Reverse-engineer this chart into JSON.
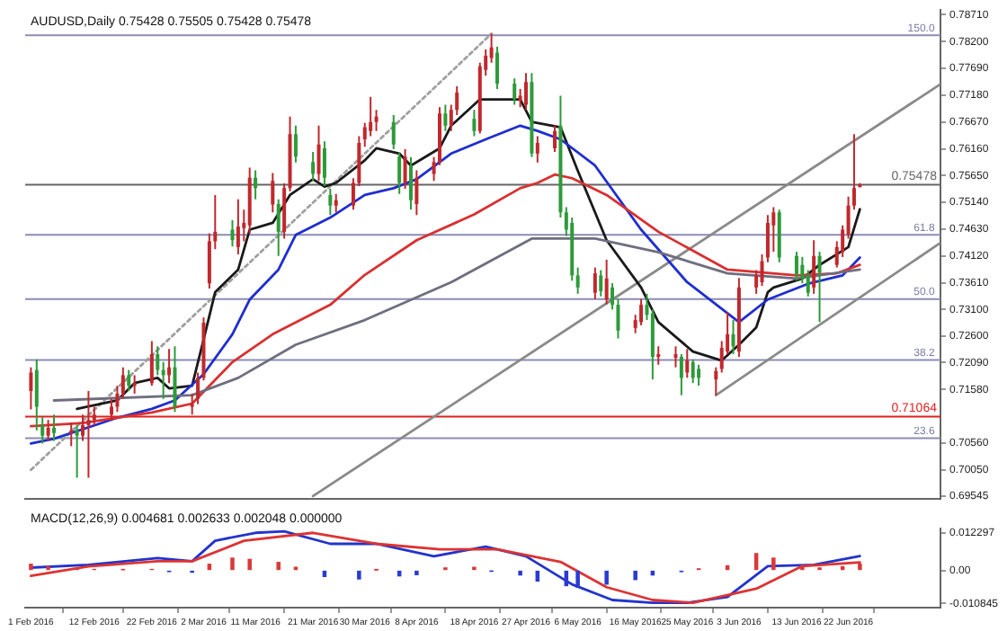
{
  "chart_data": [
    {
      "type": "candlestick",
      "title": "AUDUSD,Daily 0.75428 0.75505 0.75428 0.75478",
      "tick_labels": "y",
      "xlim": [
        "2016-01-31",
        "2016-07-08"
      ],
      "ylim": [
        0.695,
        0.788
      ],
      "yticks": [
        {
          "value": 0.7871,
          "label": "0.78710"
        },
        {
          "value": 0.782,
          "label": "0.78200"
        },
        {
          "value": 0.7769,
          "label": "0.77690"
        },
        {
          "value": 0.7718,
          "label": "0.77180"
        },
        {
          "value": 0.7667,
          "label": "0.76670"
        },
        {
          "value": 0.7616,
          "label": "0.76160"
        },
        {
          "value": 0.7565,
          "label": "0.75650"
        },
        {
          "value": 0.7514,
          "label": "0.75140"
        },
        {
          "value": 0.7463,
          "label": "0.74630"
        },
        {
          "value": 0.7412,
          "label": "0.74120"
        },
        {
          "value": 0.7361,
          "label": "0.73610"
        },
        {
          "value": 0.731,
          "label": "0.73100"
        },
        {
          "value": 0.726,
          "label": "0.72600"
        },
        {
          "value": 0.7209,
          "label": "0.72090"
        },
        {
          "value": 0.7158,
          "label": "0.71580"
        },
        {
          "value": 0.7056,
          "label": "0.70560"
        },
        {
          "value": 0.7005,
          "label": "0.70050"
        },
        {
          "value": 0.69545,
          "label": "0.69545"
        }
      ],
      "ref_lines": [
        {
          "axis": "y",
          "value": 0.7832,
          "color": "#8c8cb4"
        },
        {
          "axis": "y",
          "value": 0.75478,
          "label": "0.75478",
          "color": "#666666"
        },
        {
          "axis": "y",
          "value": 0.7452,
          "color": "#8c8cb4"
        },
        {
          "axis": "y",
          "value": 0.733,
          "color": "#8c8cb4"
        },
        {
          "axis": "y",
          "value": 0.7214,
          "color": "#8c8cb4"
        },
        {
          "axis": "y",
          "value": 0.71064,
          "label": "0.71064",
          "color": "#e02020"
        },
        {
          "axis": "y",
          "value": 0.7065,
          "color": "#8c8cb4"
        }
      ],
      "annotations": [
        {
          "text": "150.0",
          "x": "2016-07-07",
          "y": 0.7832
        },
        {
          "text": "61.8",
          "x": "2016-07-07",
          "y": 0.7452
        },
        {
          "text": "50.0",
          "x": "2016-07-07",
          "y": 0.733
        },
        {
          "text": "38.2",
          "x": "2016-07-07",
          "y": 0.7214
        },
        {
          "text": "23.6",
          "x": "2016-07-07",
          "y": 0.7065
        }
      ],
      "series": [
        {
          "type": "line",
          "color": "#6e6e80",
          "x": [
            "2016-02-05",
            "2016-02-29",
            "2016-03-08",
            "2016-03-18",
            "2016-03-30",
            "2016-04-14",
            "2016-04-28",
            "2016-05-09",
            "2016-05-20",
            "2016-06-01",
            "2016-06-13",
            "2016-06-24"
          ],
          "values": [
            0.7137,
            0.7147,
            0.718,
            0.7243,
            0.729,
            0.7362,
            0.7445,
            0.7445,
            0.7419,
            0.7379,
            0.7369,
            0.7386
          ]
        },
        {
          "type": "line",
          "color": "#d93030",
          "x": [
            "2016-02-01",
            "2016-02-10",
            "2016-02-22",
            "2016-02-29",
            "2016-03-07",
            "2016-03-14",
            "2016-03-24",
            "2016-03-30",
            "2016-04-08",
            "2016-04-18",
            "2016-04-26",
            "2016-04-29",
            "2016-05-02",
            "2016-05-05",
            "2016-05-11",
            "2016-05-20",
            "2016-06-01",
            "2016-06-13",
            "2016-06-20",
            "2016-06-24"
          ],
          "values": [
            0.7088,
            0.7094,
            0.7114,
            0.7131,
            0.721,
            0.7263,
            0.7319,
            0.7376,
            0.7442,
            0.7491,
            0.7541,
            0.7551,
            0.7567,
            0.756,
            0.7528,
            0.7458,
            0.7386,
            0.7375,
            0.7379,
            0.7395
          ]
        },
        {
          "type": "line",
          "color": "#1f2ed0",
          "x": [
            "2016-02-01",
            "2016-02-05",
            "2016-02-16",
            "2016-02-22",
            "2016-02-26",
            "2016-03-02",
            "2016-03-07",
            "2016-03-10",
            "2016-03-15",
            "2016-03-18",
            "2016-03-24",
            "2016-03-30",
            "2016-04-04",
            "2016-04-08",
            "2016-04-14",
            "2016-04-20",
            "2016-04-26",
            "2016-04-29",
            "2016-05-03",
            "2016-05-09",
            "2016-05-17",
            "2016-05-25",
            "2016-06-03",
            "2016-06-08",
            "2016-06-15",
            "2016-06-21",
            "2016-06-24"
          ],
          "values": [
            0.7055,
            0.7064,
            0.7104,
            0.7121,
            0.7137,
            0.7187,
            0.7263,
            0.7329,
            0.7386,
            0.7452,
            0.7485,
            0.7528,
            0.7541,
            0.7558,
            0.7607,
            0.7634,
            0.766,
            0.765,
            0.7634,
            0.7584,
            0.7462,
            0.7362,
            0.7286,
            0.7329,
            0.7359,
            0.7375,
            0.7409
          ]
        },
        {
          "type": "line",
          "color": "#1a1a1a",
          "x": [
            "2016-02-09",
            "2016-02-16",
            "2016-02-19",
            "2016-02-23",
            "2016-02-25",
            "2016-02-29",
            "2016-03-02",
            "2016-03-04",
            "2016-03-08",
            "2016-03-10",
            "2016-03-14",
            "2016-03-17",
            "2016-03-21",
            "2016-03-23",
            "2016-03-25",
            "2016-03-30",
            "2016-04-01",
            "2016-04-05",
            "2016-04-07",
            "2016-04-12",
            "2016-04-14",
            "2016-04-19",
            "2016-04-22",
            "2016-04-26",
            "2016-04-28",
            "2016-05-03",
            "2016-05-06",
            "2016-05-11",
            "2016-05-17",
            "2016-05-20",
            "2016-05-26",
            "2016-05-31",
            "2016-06-03",
            "2016-06-06",
            "2016-06-08",
            "2016-06-09",
            "2016-06-14",
            "2016-06-17",
            "2016-06-22",
            "2016-06-24"
          ],
          "values": [
            0.7121,
            0.7137,
            0.717,
            0.718,
            0.716,
            0.7165,
            0.7253,
            0.7343,
            0.7386,
            0.7462,
            0.7475,
            0.7528,
            0.7558,
            0.7544,
            0.7551,
            0.7594,
            0.7617,
            0.7607,
            0.7584,
            0.7617,
            0.766,
            0.771,
            0.771,
            0.771,
            0.7667,
            0.7657,
            0.7574,
            0.7442,
            0.7352,
            0.7286,
            0.723,
            0.7213,
            0.7243,
            0.7276,
            0.7343,
            0.7352,
            0.7369,
            0.7395,
            0.7429,
            0.7501
          ]
        },
        {
          "type": "line",
          "color": "#a0a0a0",
          "line_style": "dotted",
          "x": [
            "2016-02-01",
            "2016-04-21"
          ],
          "values": [
            0.7005,
            0.7835
          ]
        },
        {
          "type": "line",
          "color": "#8a8a8a",
          "x": [
            "2016-03-21",
            "2016-07-08"
          ],
          "values": [
            0.6955,
            0.7739
          ]
        },
        {
          "type": "line",
          "color": "#8a8a8a",
          "x": [
            "2016-05-30",
            "2016-07-08"
          ],
          "values": [
            0.7147,
            0.7437
          ]
        },
        {
          "color": "#c0282d",
          "x": [
            "2016-02-01",
            "2016-02-04",
            "2016-02-08",
            "2016-02-10",
            "2016-02-11",
            "2016-02-12",
            "2016-02-15",
            "2016-02-16",
            "2016-02-17",
            "2016-02-19",
            "2016-02-22",
            "2016-02-25",
            "2016-02-29",
            "2016-03-01",
            "2016-03-02",
            "2016-03-03",
            "2016-03-04",
            "2016-03-08",
            "2016-03-09",
            "2016-03-10",
            "2016-03-14",
            "2016-03-16",
            "2016-03-17",
            "2016-03-22",
            "2016-03-25",
            "2016-03-28",
            "2016-03-29",
            "2016-03-30",
            "2016-03-31",
            "2016-04-01",
            "2016-04-06",
            "2016-04-08",
            "2016-04-11",
            "2016-04-12",
            "2016-04-14",
            "2016-04-15",
            "2016-04-19",
            "2016-04-20",
            "2016-04-21",
            "2016-04-26",
            "2016-04-27",
            "2016-04-29",
            "2016-05-02",
            "2016-05-09",
            "2016-05-11",
            "2016-05-16",
            "2016-05-17",
            "2016-05-20",
            "2016-05-23",
            "2016-05-25",
            "2016-05-30",
            "2016-05-31",
            "2016-06-01",
            "2016-06-03",
            "2016-06-06",
            "2016-06-07",
            "2016-06-08",
            "2016-06-09",
            "2016-06-16",
            "2016-06-20",
            "2016-06-21",
            "2016-06-22",
            "2016-06-23",
            "2016-06-24"
          ],
          "ohlc": [
            [
              0.7155,
              0.72,
              0.712,
              0.719
            ],
            [
              0.707,
              0.71,
              0.706,
              0.7085
            ],
            [
              0.7075,
              0.7095,
              0.705,
              0.708
            ],
            [
              0.707,
              0.711,
              0.706,
              0.709
            ],
            [
              0.709,
              0.7155,
              0.699,
              0.71
            ],
            [
              0.71,
              0.7125,
              0.709,
              0.711
            ],
            [
              0.711,
              0.714,
              0.71,
              0.7125
            ],
            [
              0.7125,
              0.7165,
              0.7115,
              0.715
            ],
            [
              0.715,
              0.72,
              0.714,
              0.7185
            ],
            [
              0.7165,
              0.7185,
              0.715,
              0.717
            ],
            [
              0.717,
              0.725,
              0.7165,
              0.7225
            ],
            [
              0.7185,
              0.7235,
              0.717,
              0.72
            ],
            [
              0.7125,
              0.715,
              0.711,
              0.713
            ],
            [
              0.714,
              0.719,
              0.713,
              0.718
            ],
            [
              0.718,
              0.7295,
              0.7175,
              0.7285
            ],
            [
              0.736,
              0.7455,
              0.735,
              0.744
            ],
            [
              0.744,
              0.7528,
              0.7425,
              0.7458
            ],
            [
              0.7429,
              0.752,
              0.7415,
              0.7468
            ],
            [
              0.7465,
              0.75,
              0.744,
              0.7475
            ],
            [
              0.747,
              0.758,
              0.7455,
              0.7561
            ],
            [
              0.751,
              0.757,
              0.7495,
              0.7555
            ],
            [
              0.7458,
              0.755,
              0.7445,
              0.7541
            ],
            [
              0.7541,
              0.7677,
              0.7535,
              0.7644
            ],
            [
              0.7568,
              0.766,
              0.7555,
              0.7624
            ],
            [
              0.7508,
              0.753,
              0.7495,
              0.7518
            ],
            [
              0.7508,
              0.756,
              0.75,
              0.7551
            ],
            [
              0.7551,
              0.764,
              0.7545,
              0.7627
            ],
            [
              0.7634,
              0.7665,
              0.762,
              0.7657
            ],
            [
              0.765,
              0.7715,
              0.764,
              0.7667
            ],
            [
              0.7667,
              0.769,
              0.765,
              0.7677
            ],
            [
              0.7551,
              0.7615,
              0.754,
              0.7601
            ],
            [
              0.7511,
              0.7575,
              0.749,
              0.7561
            ],
            [
              0.7568,
              0.76,
              0.7555,
              0.7591
            ],
            [
              0.7591,
              0.7695,
              0.7585,
              0.7683
            ],
            [
              0.766,
              0.77,
              0.765,
              0.769
            ],
            [
              0.769,
              0.7735,
              0.768,
              0.7723
            ],
            [
              0.765,
              0.778,
              0.7645,
              0.7773
            ],
            [
              0.7766,
              0.7805,
              0.7755,
              0.7793
            ],
            [
              0.7789,
              0.7835,
              0.778,
              0.7809
            ],
            [
              0.7707,
              0.773,
              0.7695,
              0.7717
            ],
            [
              0.77,
              0.776,
              0.769,
              0.7743
            ],
            [
              0.7607,
              0.764,
              0.759,
              0.7627
            ],
            [
              0.7617,
              0.766,
              0.761,
              0.765
            ],
            [
              0.7342,
              0.739,
              0.733,
              0.7379
            ],
            [
              0.7329,
              0.7405,
              0.732,
              0.7369
            ],
            [
              0.7275,
              0.73,
              0.7265,
              0.729
            ],
            [
              0.7286,
              0.733,
              0.728,
              0.7319
            ],
            [
              0.722,
              0.724,
              0.7205,
              0.7225
            ],
            [
              0.7218,
              0.724,
              0.72,
              0.7225
            ],
            [
              0.719,
              0.7235,
              0.718,
              0.7213
            ],
            [
              0.7177,
              0.72,
              0.7147,
              0.7193
            ],
            [
              0.7197,
              0.725,
              0.719,
              0.7237
            ],
            [
              0.723,
              0.7305,
              0.7225,
              0.7263
            ],
            [
              0.723,
              0.737,
              0.722,
              0.7352
            ],
            [
              0.7352,
              0.7385,
              0.734,
              0.7375
            ],
            [
              0.7362,
              0.7415,
              0.7355,
              0.7402
            ],
            [
              0.7409,
              0.749,
              0.74,
              0.7475
            ],
            [
              0.747,
              0.7505,
              0.742,
              0.7495
            ],
            [
              0.7352,
              0.7442,
              0.734,
              0.7412
            ],
            [
              0.7395,
              0.744,
              0.739,
              0.7429
            ],
            [
              0.7419,
              0.747,
              0.741,
              0.7462
            ],
            [
              0.7452,
              0.7525,
              0.7445,
              0.7508
            ],
            [
              0.7508,
              0.7644,
              0.75,
              0.7541
            ],
            [
              0.75428,
              0.75505,
              0.75428,
              0.75478
            ]
          ]
        },
        {
          "color": "#2e9a3a",
          "x": [
            "2016-02-02",
            "2016-02-03",
            "2016-02-05",
            "2016-02-09",
            "2016-02-18",
            "2016-02-23",
            "2016-02-24",
            "2016-02-26",
            "2016-03-07",
            "2016-03-11",
            "2016-03-15",
            "2016-03-18",
            "2016-03-21",
            "2016-03-23",
            "2016-03-24",
            "2016-04-04",
            "2016-04-05",
            "2016-04-07",
            "2016-04-13",
            "2016-04-18",
            "2016-04-22",
            "2016-04-25",
            "2016-04-28",
            "2016-05-03",
            "2016-05-04",
            "2016-05-05",
            "2016-05-06",
            "2016-05-10",
            "2016-05-12",
            "2016-05-13",
            "2016-05-18",
            "2016-05-19",
            "2016-05-24",
            "2016-05-26",
            "2016-05-27",
            "2016-06-02",
            "2016-06-10",
            "2016-06-13",
            "2016-06-14",
            "2016-06-15",
            "2016-06-17"
          ],
          "ohlc": [
            [
              0.7195,
              0.7215,
              0.708,
              0.7125
            ],
            [
              0.709,
              0.7105,
              0.7055,
              0.707
            ],
            [
              0.7085,
              0.711,
              0.706,
              0.7075
            ],
            [
              0.708,
              0.709,
              0.699,
              0.707
            ],
            [
              0.7185,
              0.7195,
              0.7155,
              0.7165
            ],
            [
              0.7225,
              0.724,
              0.7185,
              0.7195
            ],
            [
              0.7195,
              0.721,
              0.714,
              0.7185
            ],
            [
              0.72,
              0.724,
              0.7115,
              0.7125
            ],
            [
              0.7462,
              0.748,
              0.743,
              0.7442
            ],
            [
              0.7561,
              0.7575,
              0.752,
              0.7541
            ],
            [
              0.7511,
              0.752,
              0.7412,
              0.7458
            ],
            [
              0.7644,
              0.766,
              0.759,
              0.7601
            ],
            [
              0.7591,
              0.761,
              0.7555,
              0.7568
            ],
            [
              0.7617,
              0.763,
              0.7545,
              0.7561
            ],
            [
              0.7528,
              0.754,
              0.749,
              0.7508
            ],
            [
              0.7667,
              0.768,
              0.7615,
              0.7624
            ],
            [
              0.7601,
              0.761,
              0.753,
              0.7551
            ],
            [
              0.7584,
              0.76,
              0.75,
              0.7518
            ],
            [
              0.7683,
              0.77,
              0.765,
              0.766
            ],
            [
              0.7673,
              0.769,
              0.764,
              0.765
            ],
            [
              0.7799,
              0.781,
              0.773,
              0.774
            ],
            [
              0.774,
              0.775,
              0.77,
              0.771
            ],
            [
              0.7743,
              0.776,
              0.76,
              0.7607
            ],
            [
              0.766,
              0.7717,
              0.7485,
              0.7495
            ],
            [
              0.7495,
              0.7505,
              0.745,
              0.7462
            ],
            [
              0.7475,
              0.7485,
              0.7365,
              0.7375
            ],
            [
              0.7375,
              0.739,
              0.734,
              0.7352
            ],
            [
              0.7375,
              0.7385,
              0.7335,
              0.7345
            ],
            [
              0.7352,
              0.736,
              0.731,
              0.7319
            ],
            [
              0.7319,
              0.733,
              0.7255,
              0.727
            ],
            [
              0.7319,
              0.734,
              0.729,
              0.73
            ],
            [
              0.7303,
              0.731,
              0.7177,
              0.722
            ],
            [
              0.722,
              0.7225,
              0.7147,
              0.718
            ],
            [
              0.721,
              0.7215,
              0.717,
              0.718
            ],
            [
              0.7197,
              0.7205,
              0.7165,
              0.718
            ],
            [
              0.7263,
              0.729,
              0.7225,
              0.724
            ],
            [
              0.7495,
              0.75,
              0.74,
              0.7409
            ],
            [
              0.7412,
              0.742,
              0.7365,
              0.7375
            ],
            [
              0.7395,
              0.741,
              0.736,
              0.7369
            ],
            [
              0.7375,
              0.7385,
              0.7335,
              0.7342
            ],
            [
              0.7412,
              0.742,
              0.7286,
              0.738
            ]
          ]
        }
      ]
    },
    {
      "type": "line",
      "title": "MACD(12,26,9) 0.004681 0.002633 0.002048 0.000000",
      "xlim": [
        "2016-01-31",
        "2016-07-08"
      ],
      "ylim": [
        -0.0122,
        0.0137
      ],
      "xticks": [
        {
          "value": "2016-02-01",
          "label": "1 Feb 2016"
        },
        {
          "value": "2016-02-12",
          "label": "12 Feb 2016"
        },
        {
          "value": "2016-02-22",
          "label": "22 Feb 2016"
        },
        {
          "value": "2016-03-02",
          "label": "2 Mar 2016"
        },
        {
          "value": "2016-03-11",
          "label": "11 Mar 2016"
        },
        {
          "value": "2016-03-21",
          "label": "21 Mar 2016"
        },
        {
          "value": "2016-03-30",
          "label": "30 Mar 2016"
        },
        {
          "value": "2016-04-08",
          "label": "8 Apr 2016"
        },
        {
          "value": "2016-04-18",
          "label": "18 Apr 2016"
        },
        {
          "value": "2016-04-27",
          "label": "27 Apr 2016"
        },
        {
          "value": "2016-05-06",
          "label": "6 May 2016"
        },
        {
          "value": "2016-05-16",
          "label": "16 May 2016"
        },
        {
          "value": "2016-05-25",
          "label": "25 May 2016"
        },
        {
          "value": "2016-06-03",
          "label": "3 Jun 2016"
        },
        {
          "value": "2016-06-13",
          "label": "13 Jun 2016"
        },
        {
          "value": "2016-06-22",
          "label": "22 Jun 2016"
        }
      ],
      "yticks": [
        0.012297,
        {
          "value": 0,
          "label": "0.00"
        },
        -0.010845
      ],
      "series": [
        {
          "type": "bar",
          "x": [
            "2016-02-01",
            "2016-02-04",
            "2016-02-09",
            "2016-02-12",
            "2016-02-17",
            "2016-02-22",
            "2016-02-25",
            "2016-02-29",
            "2016-03-03",
            "2016-03-07",
            "2016-03-10",
            "2016-03-15",
            "2016-03-18",
            "2016-03-23",
            "2016-03-29",
            "2016-04-01",
            "2016-04-05",
            "2016-04-08",
            "2016-04-13",
            "2016-04-18",
            "2016-04-21",
            "2016-04-26",
            "2016-04-29",
            "2016-05-04",
            "2016-05-06",
            "2016-05-11",
            "2016-05-16",
            "2016-05-19",
            "2016-05-24",
            "2016-05-27",
            "2016-06-01",
            "2016-06-06",
            "2016-06-09",
            "2016-06-14",
            "2016-06-17",
            "2016-06-21",
            "2016-06-24"
          ],
          "values": [
            0.002,
            0.0012,
            0.0006,
            0.0003,
            0.0002,
            0.0003,
            -0.0004,
            -0.0006,
            0.002,
            0.004,
            0.0036,
            0.0026,
            0.001,
            -0.002,
            -0.0028,
            0.0001,
            -0.0018,
            -0.0014,
            0.0008,
            0.001,
            -0.0002,
            -0.0015,
            -0.0035,
            -0.005,
            -0.0055,
            -0.0045,
            -0.003,
            -0.0015,
            -0.0004,
            0.0005,
            0.0015,
            0.0055,
            0.004,
            0.0015,
            0.0008,
            0.0012,
            0.002048
          ],
          "colors": [
            "#d83a3a",
            "#d83a3a",
            "#d83a3a",
            "#d83a3a",
            "#d83a3a",
            "#d83a3a",
            "#2a3bd0",
            "#2a3bd0",
            "#d83a3a",
            "#d83a3a",
            "#d83a3a",
            "#d83a3a",
            "#d83a3a",
            "#2a3bd0",
            "#2a3bd0",
            "#d83a3a",
            "#2a3bd0",
            "#2a3bd0",
            "#d83a3a",
            "#d83a3a",
            "#2a3bd0",
            "#2a3bd0",
            "#2a3bd0",
            "#2a3bd0",
            "#2a3bd0",
            "#2a3bd0",
            "#2a3bd0",
            "#2a3bd0",
            "#2a3bd0",
            "#d83a3a",
            "#d83a3a",
            "#d83a3a",
            "#d83a3a",
            "#d83a3a",
            "#d83a3a",
            "#d83a3a",
            "#d83a3a"
          ]
        },
        {
          "color": "#dd3333",
          "x": [
            "2016-02-01",
            "2016-02-11",
            "2016-02-23",
            "2016-02-29",
            "2016-03-09",
            "2016-03-21",
            "2016-04-01",
            "2016-04-12",
            "2016-04-22",
            "2016-05-03",
            "2016-05-11",
            "2016-05-19",
            "2016-05-26",
            "2016-06-06",
            "2016-06-14",
            "2016-06-24"
          ],
          "values": [
            -0.0018,
            0.0013,
            0.003,
            0.003,
            0.0097,
            0.0123,
            0.0087,
            0.0069,
            0.0069,
            0.0028,
            -0.0055,
            -0.0097,
            -0.0106,
            -0.006,
            0.0014,
            0.002633
          ]
        },
        {
          "color": "#2233cc",
          "x": [
            "2016-02-01",
            "2016-02-11",
            "2016-02-23",
            "2016-02-29",
            "2016-03-04",
            "2016-03-11",
            "2016-03-16",
            "2016-03-24",
            "2016-04-01",
            "2016-04-11",
            "2016-04-20",
            "2016-04-27",
            "2016-05-05",
            "2016-05-12",
            "2016-05-19",
            "2016-05-25",
            "2016-06-01",
            "2016-06-08",
            "2016-06-16",
            "2016-06-24"
          ],
          "values": [
            0.0009,
            0.0018,
            0.004,
            0.003,
            0.0097,
            0.0123,
            0.0128,
            0.0087,
            0.0087,
            0.0046,
            0.0078,
            0.0046,
            -0.0046,
            -0.0097,
            -0.0106,
            -0.0106,
            -0.0087,
            0.0014,
            0.0018,
            0.004681
          ]
        }
      ]
    }
  ]
}
